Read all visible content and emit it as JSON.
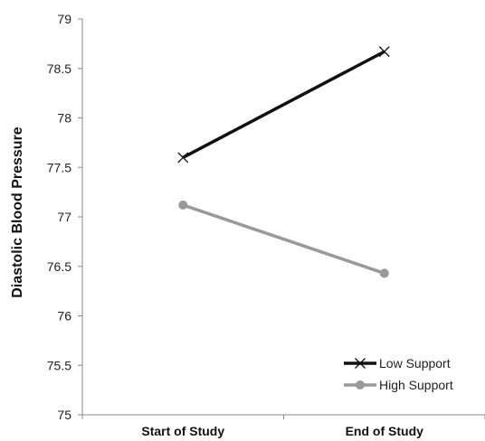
{
  "chart_data": {
    "type": "line",
    "title": "",
    "xlabel": "",
    "ylabel": "Diastolic Blood Pressure",
    "categories": [
      "Start of Study",
      "End of Study"
    ],
    "ylim": [
      75,
      79
    ],
    "yticks": [
      "75",
      "75.5",
      "76",
      "76.5",
      "77",
      "77.5",
      "78",
      "78.5",
      "79"
    ],
    "grid": false,
    "legend_position": "bottom-right",
    "series": [
      {
        "name": "Low Support",
        "values": [
          77.6,
          78.67
        ],
        "color": "#111111",
        "marker": "x"
      },
      {
        "name": "High Support",
        "values": [
          77.12,
          76.43
        ],
        "color": "#999999",
        "marker": "circle"
      }
    ]
  }
}
